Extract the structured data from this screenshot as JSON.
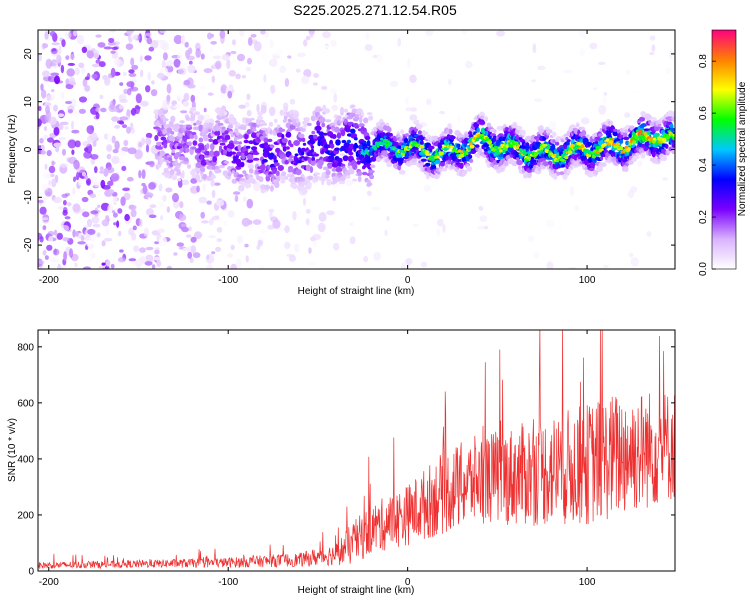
{
  "page": {
    "title": "S225.2025.271.12.54.R05"
  },
  "chart_data": [
    {
      "type": "heatmap",
      "title": "S225.2025.271.12.54.R05",
      "xlabel": "Height of straight line (km)",
      "ylabel": "Frequency (Hz)",
      "xlim": [
        -206,
        149
      ],
      "ylim": [
        -25,
        25
      ],
      "xticks": [
        -200,
        -100,
        0,
        100
      ],
      "yticks": [
        -20,
        -10,
        0,
        10,
        20
      ],
      "colorbar": {
        "label": "Normalized spectral amplitude",
        "range": [
          0.0,
          0.92
        ],
        "ticks": [
          0.0,
          0.2,
          0.4,
          0.6,
          0.8
        ],
        "colors": [
          "#ffffff",
          "#d9b3ff",
          "#7a00ff",
          "#0000ff",
          "#00c8ff",
          "#00ff00",
          "#ffff00",
          "#ff8000",
          "#ff0080"
        ]
      },
      "ridge": {
        "description_values_x": [
          -130,
          -100,
          -80,
          -60,
          -40,
          -20,
          0,
          20,
          30,
          40,
          60,
          80,
          100,
          120,
          140,
          149
        ],
        "center_freq": [
          1,
          0,
          -1,
          0,
          1,
          0.5,
          0.5,
          -1,
          0,
          2,
          0,
          -1,
          0,
          1,
          3,
          2
        ],
        "peak_amplitude": [
          0.2,
          0.25,
          0.3,
          0.3,
          0.35,
          0.4,
          0.5,
          0.55,
          0.55,
          0.6,
          0.55,
          0.55,
          0.55,
          0.6,
          0.6,
          0.55
        ]
      }
    },
    {
      "type": "line",
      "series_name": "SNR",
      "color": "#ee3030",
      "xlabel": "Height of straight line (km)",
      "ylabel": "SNR (10 * v/v)",
      "xlim": [
        -206,
        149
      ],
      "ylim": [
        0,
        860
      ],
      "xticks": [
        -200,
        -100,
        0,
        100
      ],
      "yticks": [
        0,
        200,
        400,
        600,
        800
      ],
      "envelope": {
        "x": [
          -206,
          -150,
          -100,
          -60,
          -40,
          -30,
          -20,
          0,
          20,
          40,
          60,
          80,
          100,
          120,
          149
        ],
        "mean": [
          20,
          25,
          30,
          40,
          60,
          100,
          150,
          200,
          280,
          330,
          340,
          360,
          380,
          420,
          450
        ],
        "spread": [
          12,
          14,
          18,
          25,
          40,
          80,
          90,
          110,
          150,
          160,
          180,
          200,
          220,
          230,
          200
        ]
      }
    }
  ]
}
